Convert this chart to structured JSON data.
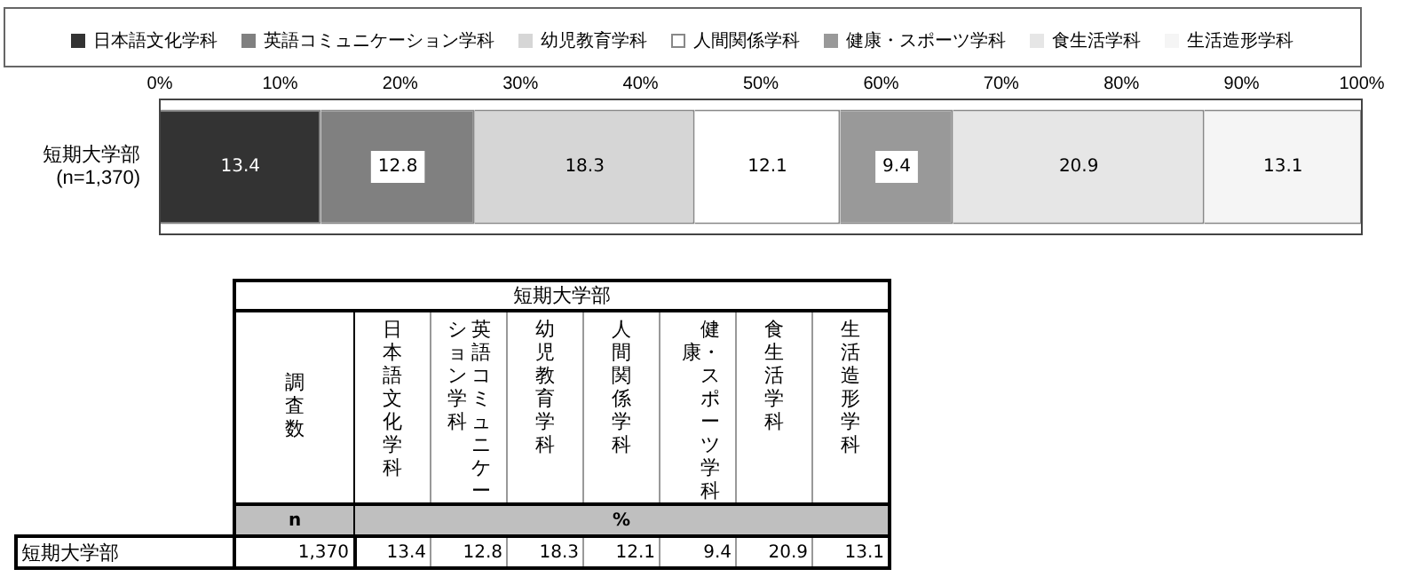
{
  "chart_data": {
    "type": "bar",
    "orientation": "horizontal",
    "stacked": true,
    "categories": [
      "短期大学部\n(n=1,370)"
    ],
    "series": [
      {
        "name": "日本語文化学科",
        "color": "#333333",
        "values": [
          13.4
        ]
      },
      {
        "name": "英語コミュニケーション学科",
        "color": "#808080",
        "values": [
          12.8
        ]
      },
      {
        "name": "幼児教育学科",
        "color": "#d6d6d6",
        "values": [
          18.3
        ]
      },
      {
        "name": "人間関係学科",
        "color": "#ffffff",
        "values": [
          12.1
        ]
      },
      {
        "name": "健康・スポーツ学科",
        "color": "#999999",
        "values": [
          9.4
        ]
      },
      {
        "name": "食生活学科",
        "color": "#e6e6e6",
        "values": [
          20.9
        ]
      },
      {
        "name": "生活造形学科",
        "color": "#f5f5f5",
        "values": [
          13.1
        ]
      }
    ],
    "xlim": [
      0,
      100
    ],
    "xticks": [
      {
        "value": 0,
        "label": "0%"
      },
      {
        "value": 10,
        "label": "10%"
      },
      {
        "value": 20,
        "label": "20%"
      },
      {
        "value": 30,
        "label": "30%"
      },
      {
        "value": 40,
        "label": "40%"
      },
      {
        "value": 50,
        "label": "50%"
      },
      {
        "value": 60,
        "label": "60%"
      },
      {
        "value": 70,
        "label": "70%"
      },
      {
        "value": 80,
        "label": "80%"
      },
      {
        "value": 90,
        "label": "90%"
      },
      {
        "value": 100,
        "label": "100%"
      }
    ],
    "legend": "top",
    "data_labels": true,
    "annotations": [
      "短期大学部",
      "調査数",
      "n",
      "%",
      "短期大学部",
      "1,370",
      "13.4",
      "12.8",
      "18.3",
      "12.1",
      "9.4",
      "20.9",
      "13.1"
    ]
  }
}
